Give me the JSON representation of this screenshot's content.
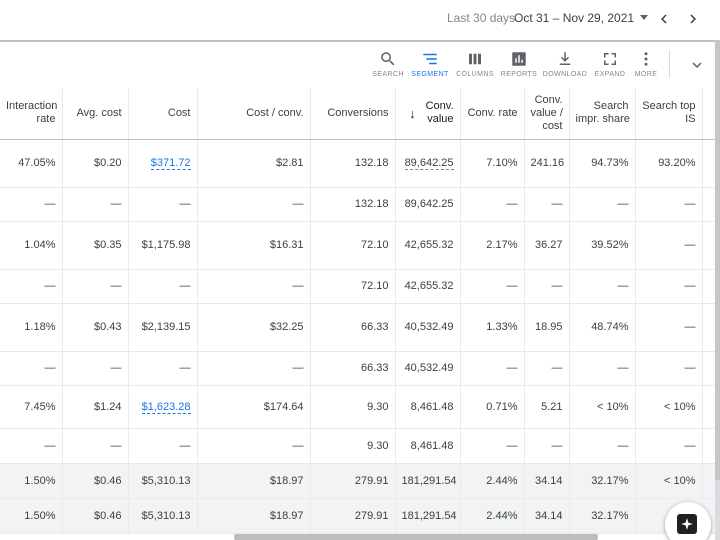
{
  "date_range": {
    "label": "Last 30 days",
    "value": "Oct 31 – Nov 29, 2021"
  },
  "toolbar": {
    "search": "SEARCH",
    "segment": "SEGMENT",
    "columns": "COLUMNS",
    "reports": "REPORTS",
    "download": "DOWNLOAD",
    "expand": "EXPAND",
    "more": "MORE",
    "active_tool": "segment",
    "accent_color": "#1a73e8"
  },
  "table": {
    "headers": {
      "interaction_rate_1": "Interaction",
      "interaction_rate_2": "rate",
      "avg_cost": "Avg. cost",
      "cost": "Cost",
      "cost_per_conv": "Cost / conv.",
      "conversions": "Conversions",
      "conv_value_1": "Conv.",
      "conv_value_2": "value",
      "conv_rate": "Conv. rate",
      "conv_value_cost_1": "Conv.",
      "conv_value_cost_2": "value /",
      "conv_value_cost_3": "cost",
      "search_impr_share_1": "Search",
      "search_impr_share_2": "impr. share",
      "search_top_is_1": "Search top",
      "search_top_is_2": "IS",
      "sort_arrow": "↓"
    },
    "rows": [
      {
        "interaction_rate": "47.05%",
        "avg_cost": "$0.20",
        "cost": "$371.72",
        "cost_per_conv": "$2.81",
        "conversions": "132.18",
        "conv_value": "89,642.25",
        "conv_rate": "7.10%",
        "conv_value_cost": "241.16",
        "search_impr_share": "94.73%",
        "search_top_is": "93.20%"
      },
      {
        "interaction_rate": "—",
        "avg_cost": "—",
        "cost": "—",
        "cost_per_conv": "—",
        "conversions": "132.18",
        "conv_value": "89,642.25",
        "conv_rate": "—",
        "conv_value_cost": "—",
        "search_impr_share": "—",
        "search_top_is": "—"
      },
      {
        "interaction_rate": "1.04%",
        "avg_cost": "$0.35",
        "cost": "$1,175.98",
        "cost_per_conv": "$16.31",
        "conversions": "72.10",
        "conv_value": "42,655.32",
        "conv_rate": "2.17%",
        "conv_value_cost": "36.27",
        "search_impr_share": "39.52%",
        "search_top_is": "—"
      },
      {
        "interaction_rate": "—",
        "avg_cost": "—",
        "cost": "—",
        "cost_per_conv": "—",
        "conversions": "72.10",
        "conv_value": "42,655.32",
        "conv_rate": "—",
        "conv_value_cost": "—",
        "search_impr_share": "—",
        "search_top_is": "—"
      },
      {
        "interaction_rate": "1.18%",
        "avg_cost": "$0.43",
        "cost": "$2,139.15",
        "cost_per_conv": "$32.25",
        "conversions": "66.33",
        "conv_value": "40,532.49",
        "conv_rate": "1.33%",
        "conv_value_cost": "18.95",
        "search_impr_share": "48.74%",
        "search_top_is": "—"
      },
      {
        "interaction_rate": "—",
        "avg_cost": "—",
        "cost": "—",
        "cost_per_conv": "—",
        "conversions": "66.33",
        "conv_value": "40,532.49",
        "conv_rate": "—",
        "conv_value_cost": "—",
        "search_impr_share": "—",
        "search_top_is": "—"
      },
      {
        "interaction_rate": "7.45%",
        "avg_cost": "$1.24",
        "cost": "$1,623.28",
        "cost_per_conv": "$174.64",
        "conversions": "9.30",
        "conv_value": "8,461.48",
        "conv_rate": "0.71%",
        "conv_value_cost": "5.21",
        "search_impr_share": "< 10%",
        "search_top_is": "< 10%"
      },
      {
        "interaction_rate": "—",
        "avg_cost": "—",
        "cost": "—",
        "cost_per_conv": "—",
        "conversions": "9.30",
        "conv_value": "8,461.48",
        "conv_rate": "—",
        "conv_value_cost": "—",
        "search_impr_share": "—",
        "search_top_is": "—"
      }
    ],
    "totals": [
      {
        "interaction_rate": "1.50%",
        "avg_cost": "$0.46",
        "cost": "$5,310.13",
        "cost_per_conv": "$18.97",
        "conversions": "279.91",
        "conv_value": "181,291.54",
        "conv_rate": "2.44%",
        "conv_value_cost": "34.14",
        "search_impr_share": "32.17%",
        "search_top_is": "< 10%"
      },
      {
        "interaction_rate": "1.50%",
        "avg_cost": "$0.46",
        "cost": "$5,310.13",
        "cost_per_conv": "$18.97",
        "conversions": "279.91",
        "conv_value": "181,291.54",
        "conv_rate": "2.44%",
        "conv_value_cost": "34.14",
        "search_impr_share": "32.17%",
        "search_top_is": ""
      }
    ]
  }
}
